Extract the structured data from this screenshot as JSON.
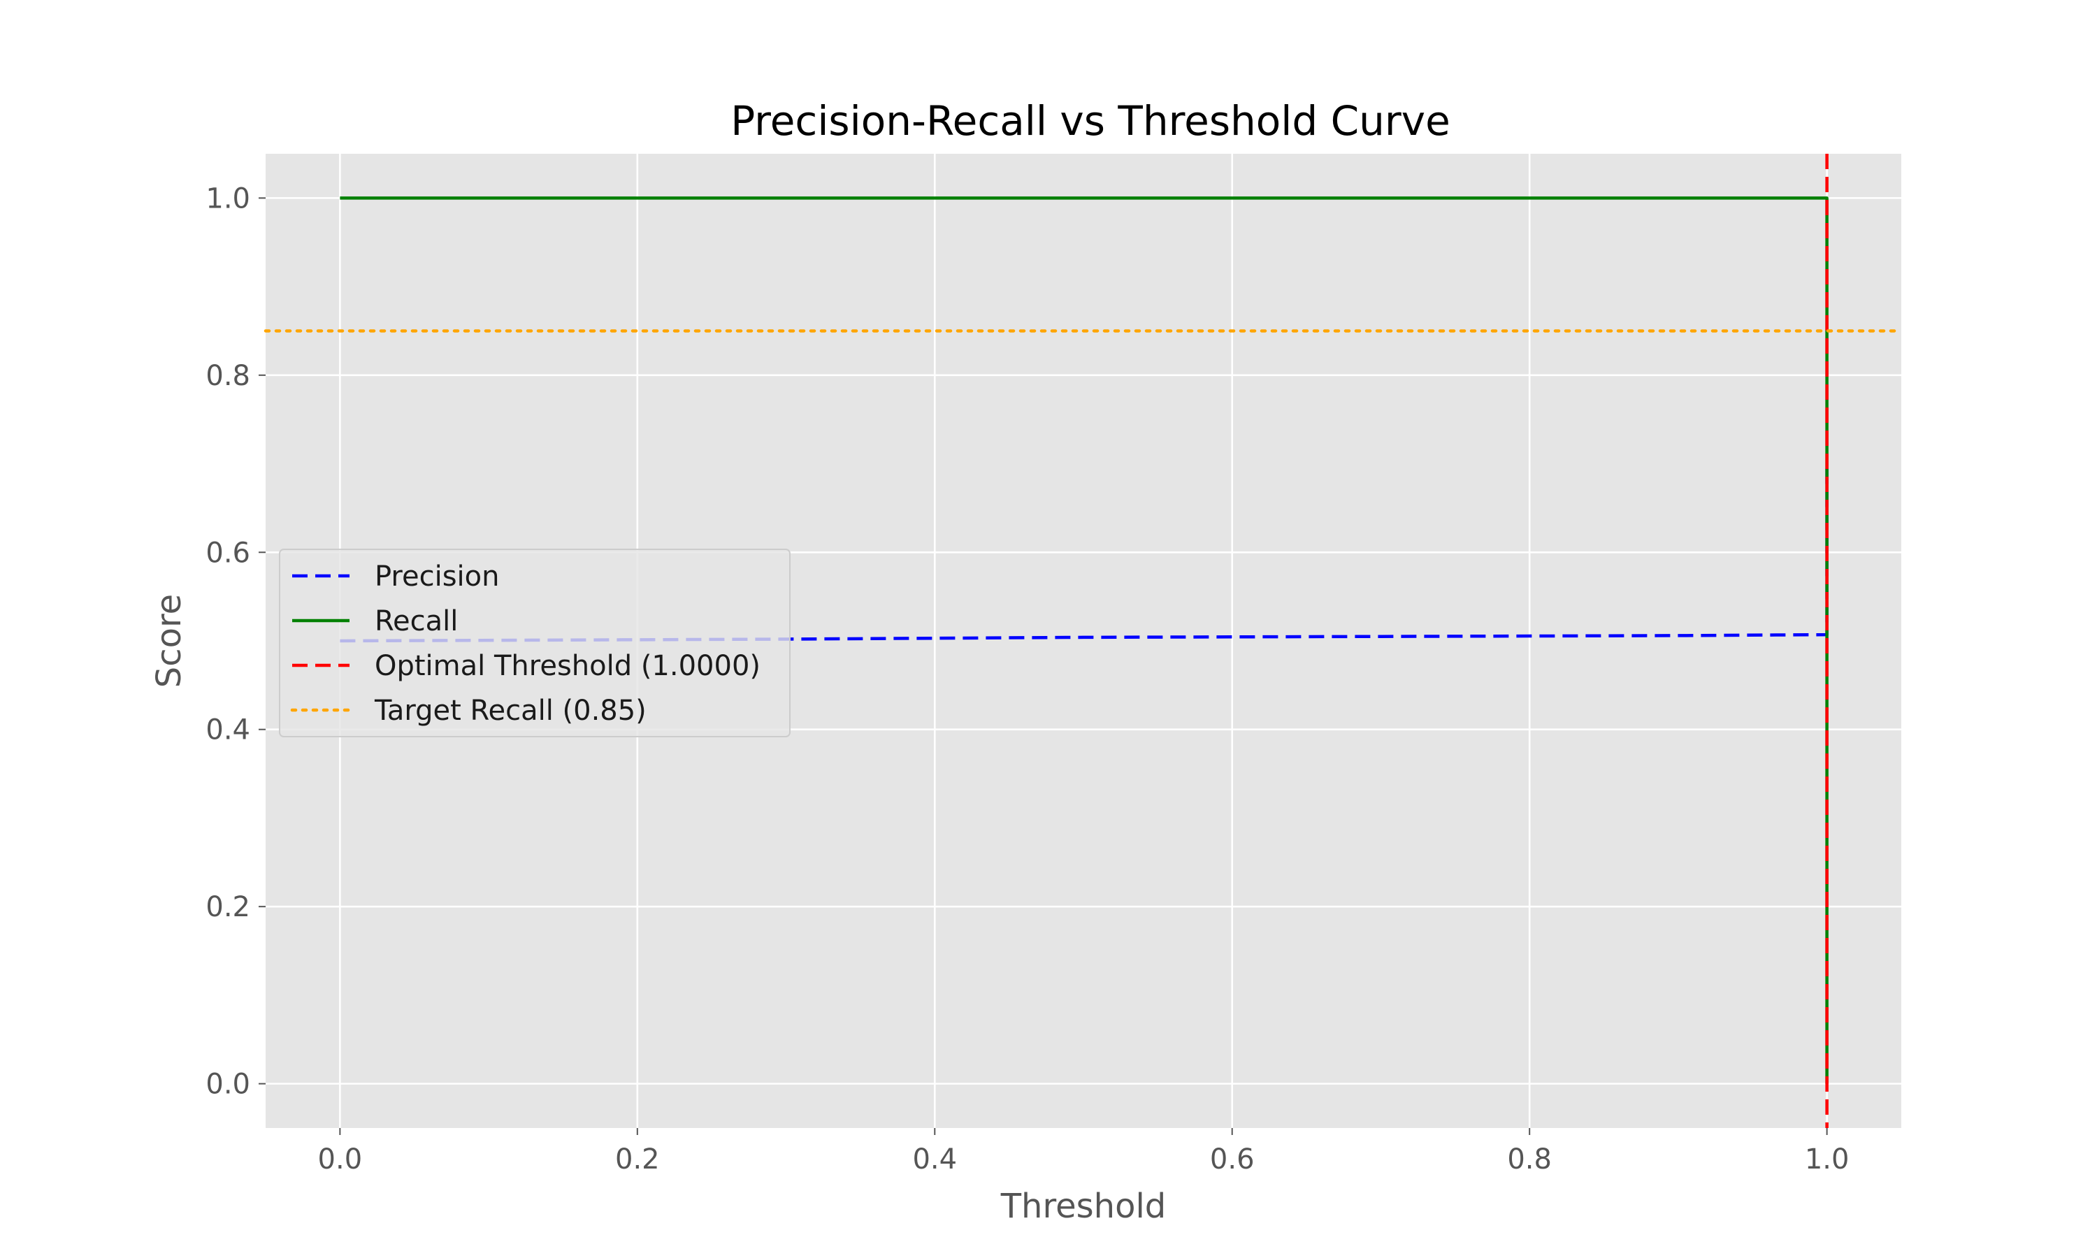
{
  "chart_data": {
    "type": "line",
    "title": "Precision-Recall vs Threshold Curve",
    "xlabel": "Threshold",
    "ylabel": "Score",
    "xlim": [
      -0.05,
      1.05
    ],
    "ylim": [
      -0.05,
      1.05
    ],
    "xticks": [
      0.0,
      0.2,
      0.4,
      0.6,
      0.8,
      1.0
    ],
    "xtick_labels": [
      "0.0",
      "0.2",
      "0.4",
      "0.6",
      "0.8",
      "1.0"
    ],
    "yticks": [
      0.0,
      0.2,
      0.4,
      0.6,
      0.8,
      1.0
    ],
    "ytick_labels": [
      "0.0",
      "0.2",
      "0.4",
      "0.6",
      "0.8",
      "1.0"
    ],
    "grid": true,
    "background": "#e5e5e5",
    "legend_position": "center-left",
    "series": [
      {
        "name": "Precision",
        "color": "#0000ff",
        "style": "dashed",
        "x": [
          0.0,
          0.3,
          0.5,
          0.7,
          0.9,
          1.0,
          1.0
        ],
        "y": [
          0.5,
          0.502,
          0.504,
          0.505,
          0.506,
          0.507,
          0.7
        ]
      },
      {
        "name": "Recall",
        "color": "#008000",
        "style": "solid",
        "x": [
          0.0,
          1.0,
          1.0
        ],
        "y": [
          1.0,
          1.0,
          0.0
        ]
      }
    ],
    "reference_lines": [
      {
        "name": "Optimal Threshold (1.0000)",
        "orientation": "vertical",
        "x": 1.0,
        "color": "#ff0000",
        "style": "dashed"
      },
      {
        "name": "Target Recall (0.85)",
        "orientation": "horizontal",
        "y": 0.85,
        "color": "#ffa500",
        "style": "dotted"
      }
    ]
  }
}
